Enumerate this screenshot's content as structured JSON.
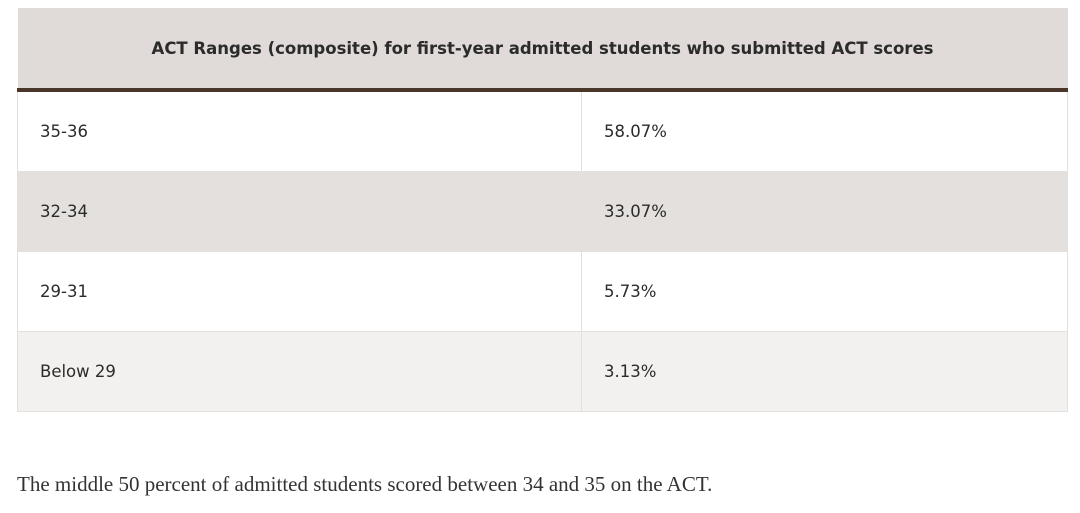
{
  "table": {
    "header": "ACT Ranges (composite) for first-year admitted students who submitted ACT scores",
    "rows": [
      [
        "35-36",
        "58.07%"
      ],
      [
        "32-34",
        "33.07%"
      ],
      [
        "29-31",
        "5.73%"
      ],
      [
        "Below 29",
        "3.13%"
      ]
    ]
  },
  "paragraph": "The middle 50 percent of admitted students scored between 34 and 35 on the ACT."
}
